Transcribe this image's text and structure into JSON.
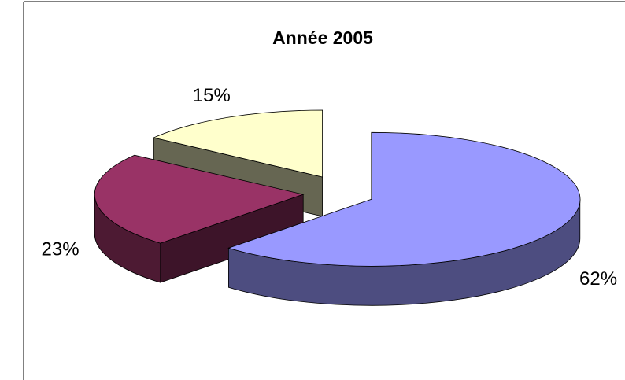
{
  "chart_data": {
    "type": "pie",
    "title": "Année 2005",
    "values": [
      62,
      23,
      15
    ],
    "value_labels": [
      "62%",
      "23%",
      "15%"
    ],
    "colors": [
      "#9999ff",
      "#993366",
      "#ffffcc"
    ],
    "explode": true,
    "three_d": true
  }
}
